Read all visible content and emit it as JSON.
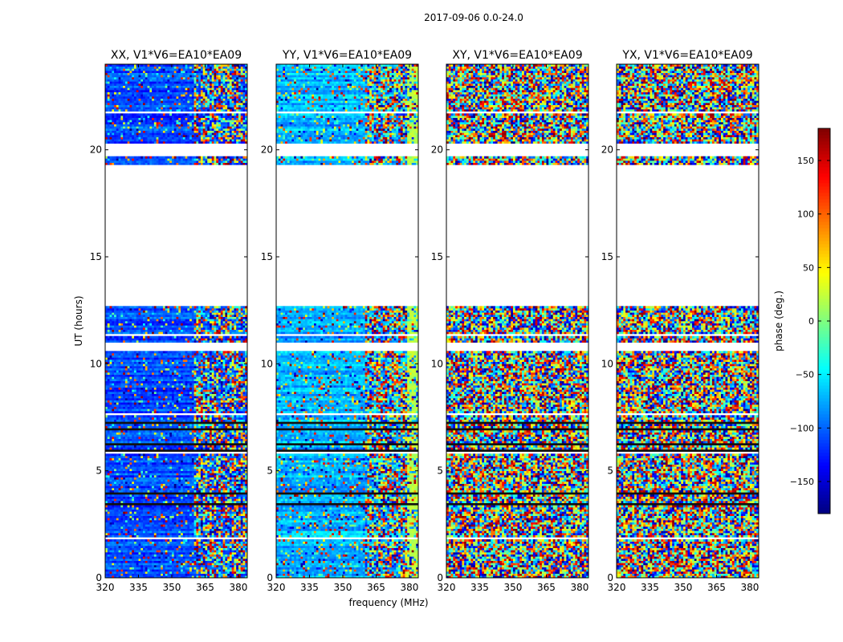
{
  "chart_data": {
    "type": "heatmap",
    "title": "2017-09-06 0.0-24.0",
    "xlabel": "frequency (MHz)",
    "ylabel": "UT (hours)",
    "xlim": [
      320,
      384
    ],
    "ylim": [
      0,
      24
    ],
    "x_ticks": [
      320,
      335,
      350,
      365,
      380
    ],
    "y_ticks": [
      0,
      5,
      10,
      15,
      20
    ],
    "panels": [
      {
        "label": "XX, V1*V6=EA10*EA09",
        "base_phase": -110,
        "coherence": 0.85
      },
      {
        "label": "YY, V1*V6=EA10*EA09",
        "base_phase": -70,
        "coherence": 0.8
      },
      {
        "label": "XY, V1*V6=EA10*EA09",
        "base_phase": 0,
        "coherence": 0.0
      },
      {
        "label": "YX, V1*V6=EA10*EA09",
        "base_phase": 0,
        "coherence": 0.0
      }
    ],
    "flagged_ut_ranges": [
      [
        19.0,
        19.3
      ],
      [
        19.7,
        20.35
      ],
      [
        12.7,
        19.0
      ],
      [
        10.65,
        11.0
      ],
      [
        11.3,
        11.45
      ]
    ],
    "colorbar": {
      "label": "phase (deg.)",
      "range": [
        -180,
        180
      ],
      "ticks": [
        -150,
        -100,
        -50,
        0,
        50,
        100,
        150
      ],
      "colormap": [
        "#00007f",
        "#0000ff",
        "#007fff",
        "#00ffff",
        "#7fff7f",
        "#ffff00",
        "#ff7f00",
        "#ff0000",
        "#7f0000"
      ]
    }
  }
}
